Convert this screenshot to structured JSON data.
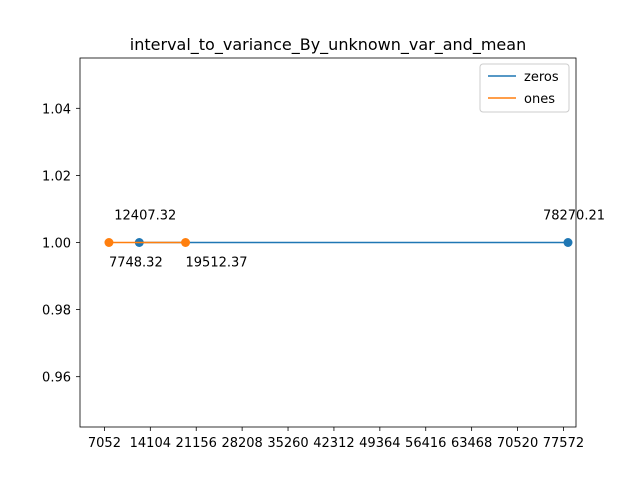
{
  "chart_data": {
    "type": "line",
    "title": "interval_to_variance_By_unknown_var_and_mean",
    "xlabel": "",
    "ylabel": "",
    "xlim": [
      3300,
      79500
    ],
    "ylim": [
      0.945,
      1.055
    ],
    "x_ticks": [
      7052,
      14104,
      21156,
      28208,
      35260,
      42312,
      49364,
      56416,
      63468,
      70520,
      77572
    ],
    "y_ticks": [
      0.96,
      0.98,
      1.0,
      1.02,
      1.04
    ],
    "y_tick_labels": [
      "0.96",
      "0.98",
      "1.00",
      "1.02",
      "1.04"
    ],
    "grid": false,
    "legend_position": "top-right",
    "series": [
      {
        "name": "zeros",
        "color": "#1f77b4",
        "x": [
          12407.32,
          78270.21
        ],
        "y": [
          1.0,
          1.0
        ],
        "labels": [
          "12407.32",
          "78270.21"
        ],
        "label_position": "above"
      },
      {
        "name": "ones",
        "color": "#ff7f0e",
        "x": [
          7748.32,
          19512.37
        ],
        "y": [
          1.0,
          1.0
        ],
        "labels": [
          "7748.32",
          "19512.37"
        ],
        "label_position": "below"
      }
    ]
  }
}
